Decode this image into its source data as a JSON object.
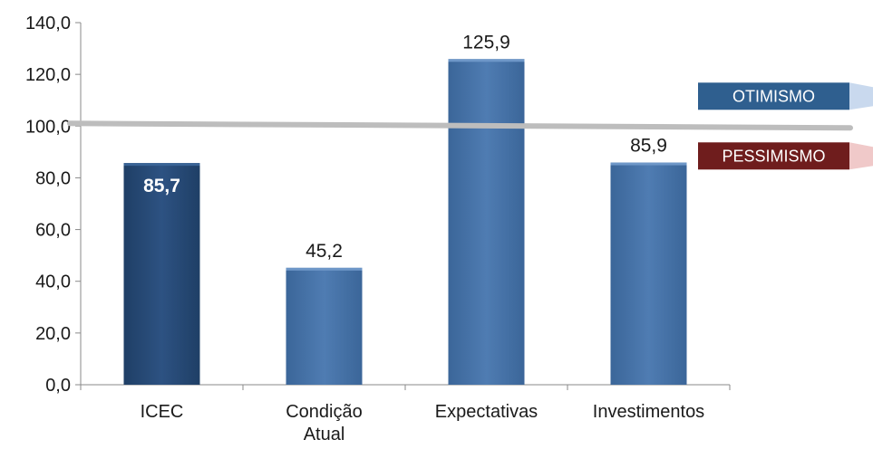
{
  "chart_data": {
    "type": "bar",
    "categories": [
      "ICEC",
      "Condição Atual",
      "Expectativas",
      "Investimentos"
    ],
    "category_lines": [
      [
        "ICEC"
      ],
      [
        "Condição",
        "Atual"
      ],
      [
        "Expectativas"
      ],
      [
        "Investimentos"
      ]
    ],
    "values": [
      85.7,
      45.2,
      125.9,
      85.9
    ],
    "value_labels": [
      "85,7",
      "45,2",
      "125,9",
      "85,9"
    ],
    "highlight_index": 0,
    "ylim": [
      0,
      140
    ],
    "yticks": [
      0,
      20,
      40,
      60,
      80,
      100,
      120,
      140
    ],
    "ytick_labels": [
      "0,0",
      "20,0",
      "40,0",
      "60,0",
      "80,0",
      "100,0",
      "120,0",
      "140,0"
    ],
    "reference_line": {
      "value": 100
    },
    "bands": [
      {
        "label": "OTIMISMO",
        "position": "above",
        "color": "#2f5f8f"
      },
      {
        "label": "PESSIMISMO",
        "position": "below",
        "color": "#6f1d1d"
      }
    ],
    "colors": {
      "bar": "#4a75a8",
      "bar_highlight": "#274a73",
      "reference_line": "#bdbdbd",
      "axis": "#8a8a8a"
    },
    "title": "",
    "xlabel": "",
    "ylabel": "",
    "grid": false,
    "legend": "none"
  }
}
